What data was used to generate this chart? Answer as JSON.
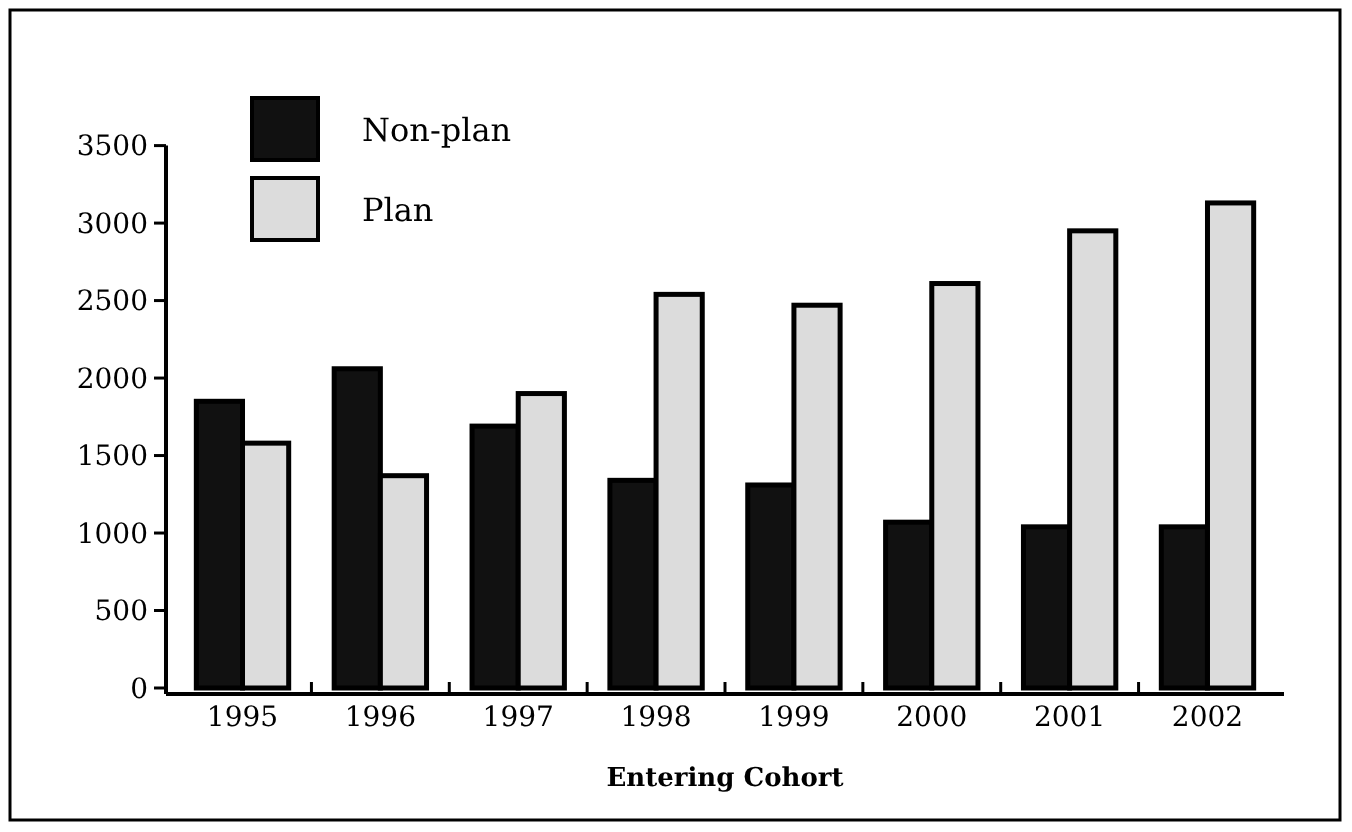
{
  "chart_data": {
    "type": "bar",
    "xlabel": "Entering Cohort",
    "categories": [
      "1995",
      "1996",
      "1997",
      "1998",
      "1999",
      "2000",
      "2001",
      "2002"
    ],
    "series": [
      {
        "name": "Non-plan",
        "color": "#111111",
        "values": [
          1850,
          2060,
          1690,
          1340,
          1310,
          1070,
          1040,
          1040
        ]
      },
      {
        "name": "Plan",
        "color": "#dcdcdc",
        "values": [
          1580,
          1370,
          1900,
          2540,
          2470,
          2610,
          2950,
          3130
        ]
      }
    ],
    "ylim": [
      0,
      3500
    ],
    "yticks": [
      0,
      500,
      1000,
      1500,
      2000,
      2500,
      3000,
      3500
    ],
    "grid": false,
    "legend": "top left"
  }
}
